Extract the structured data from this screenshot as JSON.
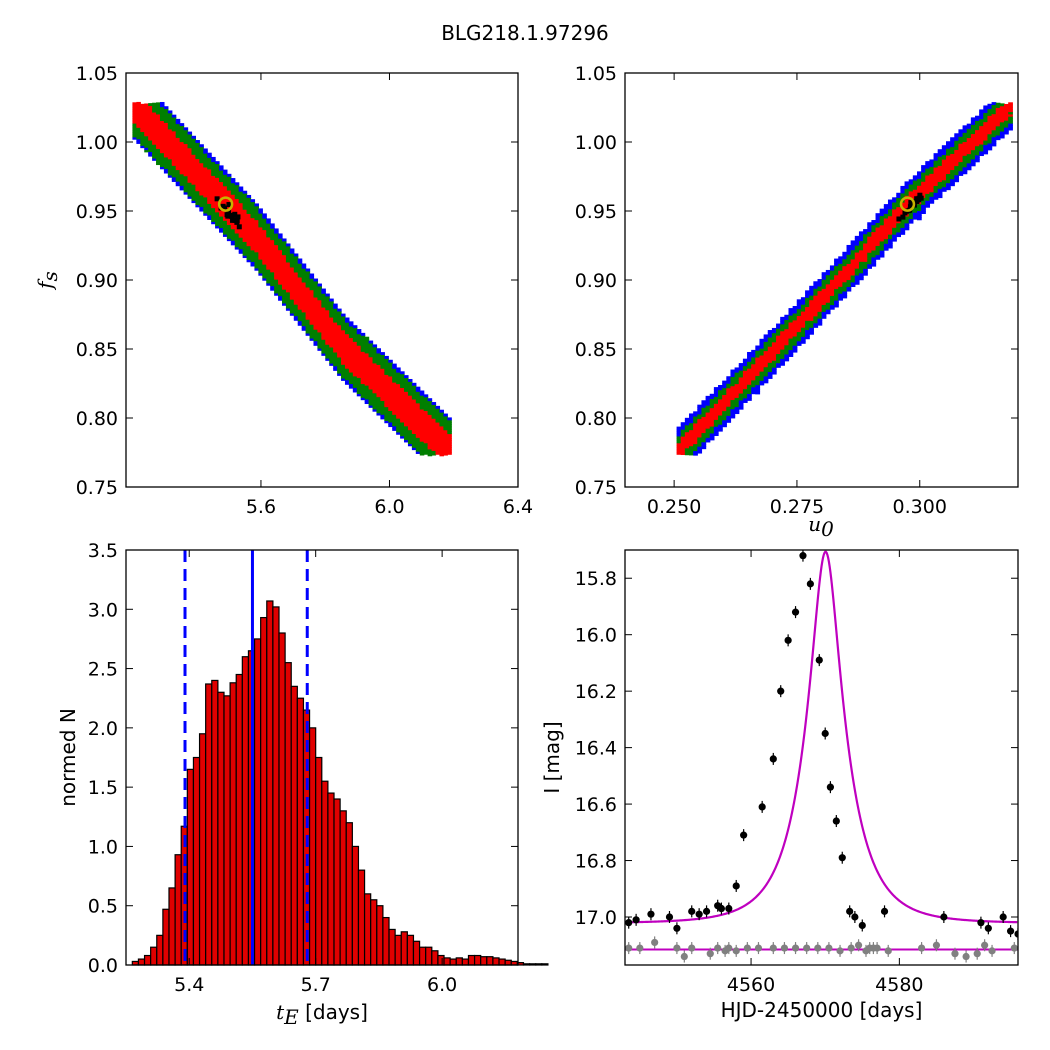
{
  "figure": {
    "title": "BLG218.1.97296"
  },
  "colors": {
    "red": "#ff0000",
    "green": "#007f00",
    "blue": "#0000ff",
    "black": "#000000",
    "gold": "#c8b400",
    "hist": "#e00000",
    "model": "#bf00bf",
    "gray": "#808080"
  },
  "chart_data": [
    {
      "id": "fs_vs_tE",
      "type": "heatmap",
      "title": "",
      "xlabel": "",
      "ylabel": "f_s",
      "xlim": [
        5.18,
        6.4
      ],
      "ylim": [
        0.75,
        1.05
      ],
      "xticks": [
        "5.6",
        "6.0",
        "6.4"
      ],
      "yticks": [
        "0.75",
        "0.80",
        "0.85",
        "0.90",
        "0.95",
        "1.00",
        "1.05"
      ],
      "confidence_levels": [
        "1-sigma (red)",
        "2-sigma (green)",
        "3-sigma (blue)"
      ],
      "best_fit": {
        "x": 5.49,
        "y": 0.955
      },
      "ridge": [
        [
          5.2,
          1.025
        ],
        [
          5.58,
          0.93
        ],
        [
          5.85,
          0.85
        ],
        [
          6.18,
          0.775
        ]
      ],
      "half_width_y": {
        "red": 0.012,
        "green": 0.022,
        "blue": 0.033
      }
    },
    {
      "id": "fs_vs_u0",
      "type": "heatmap",
      "title": "",
      "xlabel": "u_0",
      "ylabel": "",
      "xlim": [
        0.24,
        0.32
      ],
      "ylim": [
        0.75,
        1.05
      ],
      "xticks": [
        "0.250",
        "0.275",
        "0.300"
      ],
      "yticks": [
        "0.75",
        "0.80",
        "0.85",
        "0.90",
        "0.95",
        "1.00",
        "1.05"
      ],
      "confidence_levels": [
        "1-sigma (red)",
        "2-sigma (green)",
        "3-sigma (blue)"
      ],
      "best_fit": {
        "x": 0.2975,
        "y": 0.955
      },
      "ridge": [
        [
          0.2505,
          0.775
        ],
        [
          0.2757,
          0.87
        ],
        [
          0.2975,
          0.955
        ],
        [
          0.318,
          1.025
        ]
      ],
      "half_width_y": {
        "red": 0.006,
        "green": 0.012,
        "blue": 0.017
      }
    },
    {
      "id": "tE_histogram",
      "type": "bar",
      "title": "",
      "xlabel": "t_E [days]",
      "ylabel": "normed N",
      "xlim": [
        5.25,
        6.18
      ],
      "ylim": [
        0,
        3.5
      ],
      "xticks": [
        "5.4",
        "5.7",
        "6.0"
      ],
      "yticks": [
        "0.0",
        "0.5",
        "1.0",
        "1.5",
        "2.0",
        "2.5",
        "3.0",
        "3.5"
      ],
      "bin_start": 5.265,
      "bin_width": 0.0145,
      "values": [
        0.03,
        0.05,
        0.08,
        0.15,
        0.25,
        0.47,
        0.65,
        0.93,
        1.17,
        1.65,
        1.75,
        1.95,
        2.37,
        2.4,
        2.3,
        2.27,
        2.38,
        2.45,
        2.6,
        2.65,
        2.75,
        2.93,
        3.07,
        3.02,
        2.8,
        2.55,
        2.35,
        2.25,
        2.15,
        2.0,
        1.75,
        1.55,
        1.45,
        1.4,
        1.3,
        1.2,
        1.0,
        0.8,
        0.6,
        0.55,
        0.5,
        0.4,
        0.3,
        0.25,
        0.28,
        0.25,
        0.2,
        0.15,
        0.15,
        0.12,
        0.08,
        0.06,
        0.05,
        0.06,
        0.05,
        0.08,
        0.08,
        0.07,
        0.07,
        0.06,
        0.05,
        0.04,
        0.03,
        0.02,
        0.01,
        0.01,
        0.01,
        0.01
      ],
      "median": 5.55,
      "lower_1sigma": 5.39,
      "upper_1sigma": 5.68
    },
    {
      "id": "lightcurve",
      "type": "scatter",
      "title": "",
      "xlabel": "HJD-2450000 [days]",
      "ylabel": "I [mag]",
      "xlim": [
        4543,
        4596
      ],
      "ylim": [
        17.17,
        15.7
      ],
      "xticks": [
        "4560",
        "4580"
      ],
      "yticks": [
        "15.8",
        "16.0",
        "16.2",
        "16.4",
        "16.6",
        "16.8",
        "17.0"
      ],
      "model": {
        "t0": 4570.05,
        "tE": 5.55,
        "u0": 0.2975,
        "fs": 0.955,
        "I_base": 17.022
      },
      "series": [
        {
          "name": "",
          "color": "black",
          "x": [
            4543.5,
            4544.5,
            4546.5,
            4549.0,
            4550.0,
            4552.0,
            4553.0,
            4554.0,
            4555.5,
            4556.0,
            4557.0,
            4558.0,
            4559.0,
            4561.5,
            4563.0,
            4564.0,
            4565.0,
            4566.0,
            4567.0,
            4568.0,
            4569.2,
            4570.0,
            4570.7,
            4571.5,
            4572.3,
            4573.3,
            4574.0,
            4575.0,
            4578.0,
            4586.0,
            4591.0,
            4592.0,
            4594.0,
            4595.0,
            4596.0
          ],
          "y": [
            17.02,
            17.01,
            16.99,
            17.0,
            17.04,
            16.98,
            16.99,
            16.98,
            16.96,
            16.97,
            16.97,
            16.89,
            16.71,
            16.61,
            16.44,
            16.2,
            16.02,
            15.92,
            15.72,
            15.82,
            16.09,
            16.35,
            16.54,
            16.66,
            16.79,
            16.98,
            17.0,
            17.03,
            16.98,
            17.0,
            17.02,
            17.04,
            17.0,
            17.05,
            17.06
          ]
        },
        {
          "name": "",
          "color": "gray",
          "x": [
            4543.5,
            4545.0,
            4547.0,
            4550.0,
            4551.0,
            4552.0,
            4554.5,
            4555.5,
            4556.5,
            4557.0,
            4558.0,
            4559.5,
            4561.0,
            4563.0,
            4564.5,
            4566.0,
            4567.5,
            4569.0,
            4570.5,
            4572.0,
            4573.5,
            4574.5,
            4575.5,
            4576.0,
            4576.5,
            4577.0,
            4578.5,
            4583.0,
            4585.0,
            4587.5,
            4589.0,
            4590.5,
            4591.5,
            4592.5,
            4595.5
          ],
          "y": [
            17.11,
            17.11,
            17.09,
            17.11,
            17.14,
            17.11,
            17.13,
            17.11,
            17.12,
            17.11,
            17.12,
            17.11,
            17.11,
            17.11,
            17.11,
            17.11,
            17.11,
            17.11,
            17.11,
            17.12,
            17.11,
            17.1,
            17.12,
            17.11,
            17.11,
            17.11,
            17.12,
            17.11,
            17.1,
            17.13,
            17.14,
            17.13,
            17.1,
            17.12,
            17.11
          ]
        }
      ],
      "baseline_gray": 17.115
    }
  ]
}
